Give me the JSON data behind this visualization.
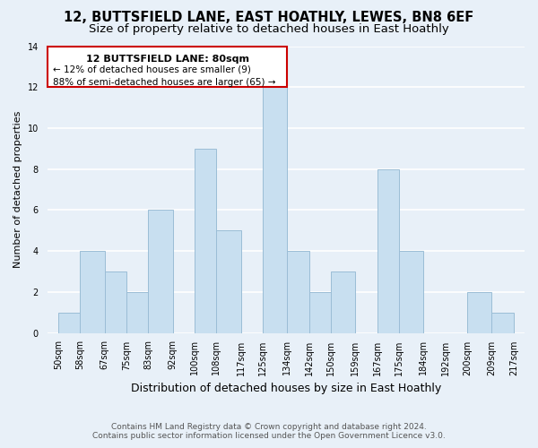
{
  "title": "12, BUTTSFIELD LANE, EAST HOATHLY, LEWES, BN8 6EF",
  "subtitle": "Size of property relative to detached houses in East Hoathly",
  "xlabel": "Distribution of detached houses by size in East Hoathly",
  "ylabel": "Number of detached properties",
  "bar_color": "#c8dff0",
  "bar_edge_color": "#9bbdd6",
  "background_color": "#e8f0f8",
  "grid_color": "#ffffff",
  "annotation_box_facecolor": "#ffffff",
  "annotation_border_color": "#cc0000",
  "bins": [
    50,
    58,
    67,
    75,
    83,
    92,
    100,
    108,
    117,
    125,
    134,
    142,
    150,
    159,
    167,
    175,
    184,
    192,
    200,
    209,
    217
  ],
  "counts": [
    1,
    4,
    3,
    2,
    6,
    0,
    9,
    5,
    0,
    12,
    4,
    2,
    3,
    0,
    8,
    4,
    0,
    0,
    2,
    1
  ],
  "tick_labels": [
    "50sqm",
    "58sqm",
    "67sqm",
    "75sqm",
    "83sqm",
    "92sqm",
    "100sqm",
    "108sqm",
    "117sqm",
    "125sqm",
    "134sqm",
    "142sqm",
    "150sqm",
    "159sqm",
    "167sqm",
    "175sqm",
    "184sqm",
    "192sqm",
    "200sqm",
    "209sqm",
    "217sqm"
  ],
  "ylim": [
    0,
    14
  ],
  "yticks": [
    0,
    2,
    4,
    6,
    8,
    10,
    12,
    14
  ],
  "annotation_line1": "12 BUTTSFIELD LANE: 80sqm",
  "annotation_line2": "← 12% of detached houses are smaller (9)",
  "annotation_line3": "88% of semi-detached houses are larger (65) →",
  "footer1": "Contains HM Land Registry data © Crown copyright and database right 2024.",
  "footer2": "Contains public sector information licensed under the Open Government Licence v3.0.",
  "title_fontsize": 10.5,
  "subtitle_fontsize": 9.5,
  "xlabel_fontsize": 9,
  "ylabel_fontsize": 8,
  "tick_fontsize": 7,
  "annotation_fontsize": 8,
  "footer_fontsize": 6.5
}
